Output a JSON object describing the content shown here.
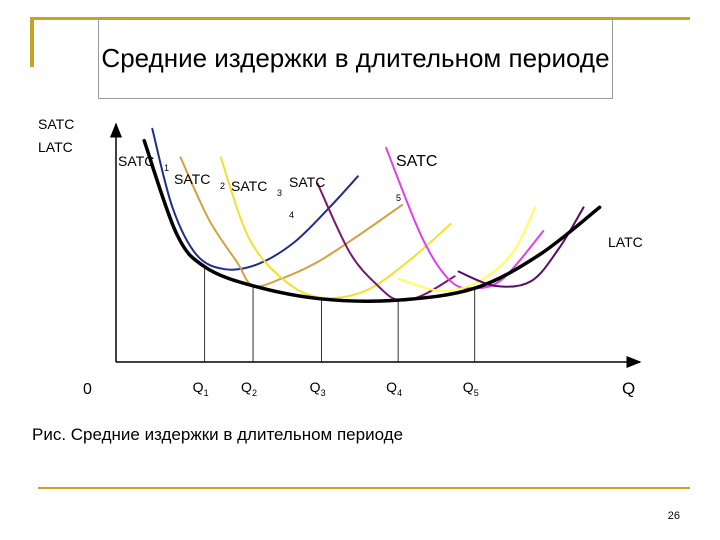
{
  "slide": {
    "title": "Средние издержки в длительном периоде",
    "caption": "Рис. Средние издержки в длительном периоде",
    "page_number": "26"
  },
  "colors": {
    "accent_bar": "#c9a227",
    "satc1": "#1f2d8a",
    "satc2": "#d4a040",
    "satc3": "#f0e030",
    "satc4": "#7a1a6e",
    "satc5": "#e040e8",
    "satc6": "#ffff55",
    "satc7": "#5a0a6a",
    "latc": "#000000"
  },
  "chart_data": {
    "type": "line",
    "title": "",
    "ylabel": [
      "SATC",
      "LATC"
    ],
    "xlabel": "Q",
    "origin_label": "0",
    "x_ticks": [
      {
        "base": "Q",
        "sub": "1"
      },
      {
        "base": "Q",
        "sub": "2"
      },
      {
        "base": "Q",
        "sub": "3"
      },
      {
        "base": "Q",
        "sub": "4"
      },
      {
        "base": "Q",
        "sub": "5"
      }
    ],
    "x_tick_values": [
      2.2,
      3.4,
      5.1,
      7.0,
      8.9
    ],
    "xlim": [
      0,
      13
    ],
    "ylim": [
      0,
      10
    ],
    "series": [
      {
        "name": "LATC",
        "color_key": "latc",
        "x": [
          0.7,
          1.5,
          2.2,
          3.4,
          5.1,
          7.0,
          8.9,
          10.5,
          12.0
        ],
        "y": [
          9.3,
          5.4,
          4.0,
          3.2,
          2.65,
          2.6,
          3.1,
          4.5,
          6.5
        ]
      },
      {
        "name": "SATC",
        "sub": "1",
        "color_key": "satc1",
        "x": [
          0.9,
          1.4,
          2.0,
          2.7,
          3.5,
          4.4,
          5.3,
          6.0
        ],
        "y": [
          9.8,
          6.5,
          4.5,
          3.9,
          4.1,
          5.0,
          6.5,
          7.8
        ]
      },
      {
        "name": "SATC",
        "sub": "2",
        "color_key": "satc2",
        "x": [
          1.6,
          2.3,
          3.0,
          3.4,
          4.1,
          5.0,
          6.0,
          7.1
        ],
        "y": [
          8.6,
          6.0,
          4.2,
          3.2,
          3.5,
          4.2,
          5.3,
          6.6
        ]
      },
      {
        "name": "SATC",
        "sub": "3",
        "color_key": "satc3",
        "x": [
          2.6,
          3.3,
          4.2,
          5.1,
          6.2,
          7.3,
          8.3
        ],
        "y": [
          8.6,
          5.2,
          3.4,
          2.7,
          3.0,
          4.3,
          5.8
        ]
      },
      {
        "name": "SATC",
        "sub": "4",
        "color_key": "satc4",
        "x": [
          5.0,
          5.8,
          6.5,
          7.0,
          7.6,
          8.4
        ],
        "y": [
          7.5,
          4.6,
          3.2,
          2.6,
          2.8,
          3.6
        ]
      },
      {
        "name": "SATC",
        "sub": "5",
        "color_key": "satc5",
        "x": [
          6.7,
          7.6,
          8.3,
          8.9,
          9.6,
          10.6
        ],
        "y": [
          9.0,
          5.2,
          3.4,
          3.1,
          3.5,
          5.5
        ]
      },
      {
        "name": "",
        "color_key": "satc6",
        "x": [
          7.0,
          8.0,
          8.9,
          9.8,
          10.4
        ],
        "y": [
          3.5,
          3.0,
          3.3,
          4.5,
          6.5
        ]
      },
      {
        "name": "",
        "color_key": "satc7",
        "x": [
          8.5,
          9.4,
          10.3,
          11.0,
          11.6
        ],
        "y": [
          3.8,
          3.2,
          3.4,
          4.8,
          6.5
        ]
      }
    ],
    "series_labels": [
      {
        "base": "SATC",
        "sub": "1",
        "color_key": "satc1"
      },
      {
        "base": "SATC",
        "sub": "2",
        "color_key": "satc2"
      },
      {
        "base": "SATC",
        "sub": "3",
        "color_key": "satc3"
      },
      {
        "base": "SATC",
        "sub": "4",
        "color_key": "satc4"
      },
      {
        "base": "SATC",
        "sub": "5",
        "color_key": "satc5"
      },
      {
        "base": "LATC",
        "sub": "",
        "color_key": "latc"
      }
    ],
    "grid": false,
    "legend": "none"
  }
}
